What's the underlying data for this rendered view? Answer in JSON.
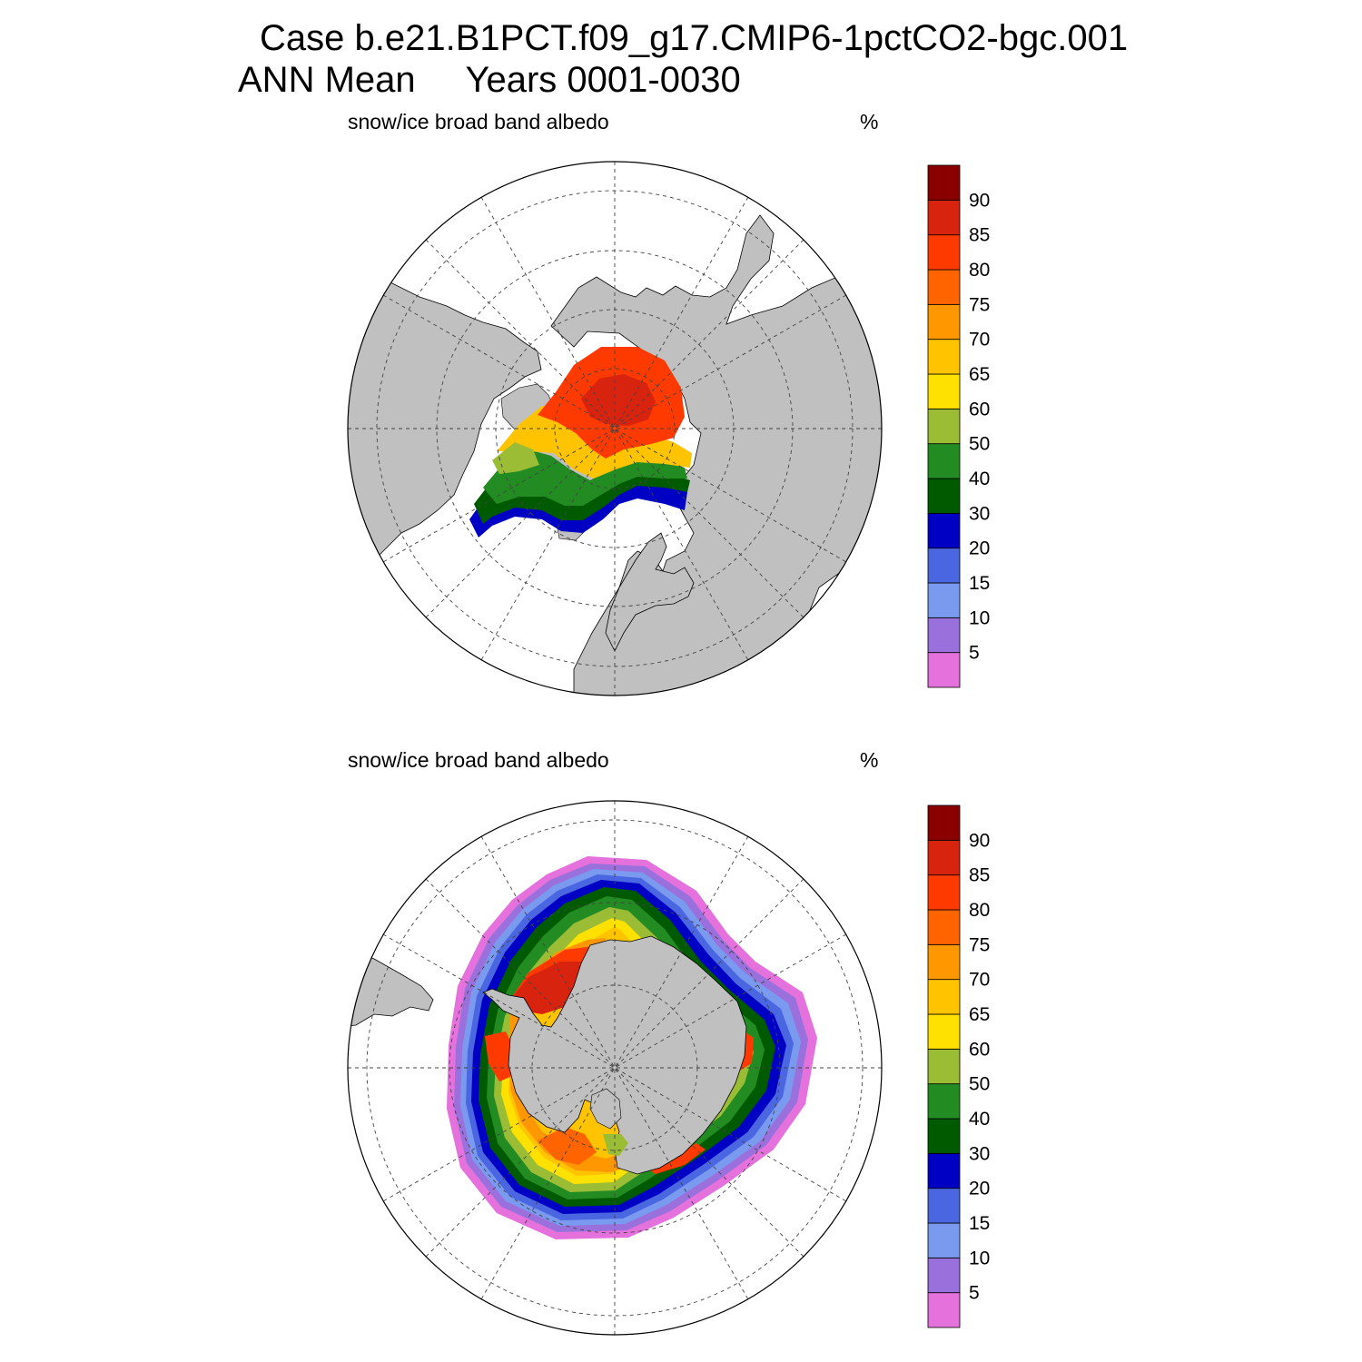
{
  "header": {
    "case_title": "Case b.e21.B1PCT.f09_g17.CMIP6-1pctCO2-bgc.001",
    "period_title": "ANN Mean     Years 0001-0030"
  },
  "panels": [
    {
      "hemisphere": "north",
      "variable_label": "snow/ice broad band albedo",
      "units": "%"
    },
    {
      "hemisphere": "south",
      "variable_label": "snow/ice broad band albedo",
      "units": "%"
    }
  ],
  "colorbar": {
    "levels": [
      5,
      10,
      15,
      20,
      30,
      40,
      50,
      60,
      65,
      70,
      75,
      80,
      85,
      90
    ],
    "tick_labels": [
      "5",
      "10",
      "15",
      "20",
      "30",
      "40",
      "50",
      "60",
      "65",
      "70",
      "75",
      "80",
      "85",
      "90"
    ],
    "colors": [
      "#e471dc",
      "#9a71dc",
      "#7a9af0",
      "#4a66e0",
      "#0000c4",
      "#005a00",
      "#228b22",
      "#9abd35",
      "#ffe100",
      "#ffc300",
      "#ff9800",
      "#ff6400",
      "#ff3a00",
      "#d8230f",
      "#8a0000"
    ]
  },
  "map_style": {
    "land_color": "#c0c0c0",
    "ocean_color": "#ffffff",
    "grid_color": "#444444"
  }
}
